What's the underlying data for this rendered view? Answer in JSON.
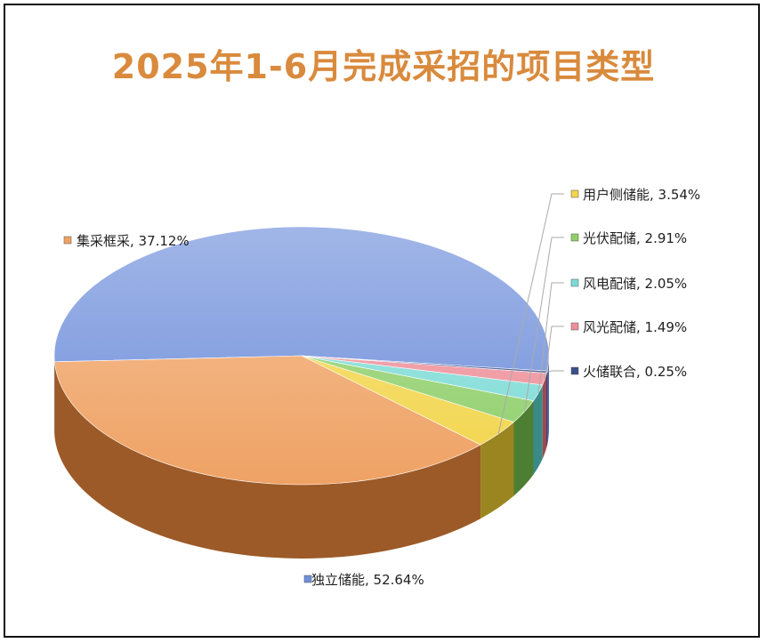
{
  "chart_data": {
    "type": "pie",
    "title": "2025年1-6月完成采招的项目类型",
    "title_color": "#D98A3C",
    "style": "3d",
    "slices": [
      {
        "name": "独立储能",
        "value": 52.64,
        "label": "独立储能, 52.64%",
        "color": "#6F8FDB",
        "dark": "#2A3D73"
      },
      {
        "name": "集采框采",
        "value": 37.12,
        "label": "集采框采, 37.12%",
        "color": "#EFA264",
        "dark": "#9C5A28"
      },
      {
        "name": "用户侧储能",
        "value": 3.54,
        "label": "用户侧储能, 3.54%",
        "color": "#F2D54B",
        "dark": "#9B8520"
      },
      {
        "name": "光伏配储",
        "value": 2.91,
        "label": "光伏配储, 2.91%",
        "color": "#8FCF6A",
        "dark": "#4D7F33"
      },
      {
        "name": "风电配储",
        "value": 2.05,
        "label": "风电配储, 2.05%",
        "color": "#7DDBD6",
        "dark": "#3A8A86"
      },
      {
        "name": "风光配储",
        "value": 1.49,
        "label": "风光配储, 1.49%",
        "color": "#EE8E98",
        "dark": "#9C4A52"
      },
      {
        "name": "火储联合",
        "value": 0.25,
        "label": "火储联合, 0.25%",
        "color": "#3B4E8C",
        "dark": "#1E2850"
      }
    ]
  }
}
